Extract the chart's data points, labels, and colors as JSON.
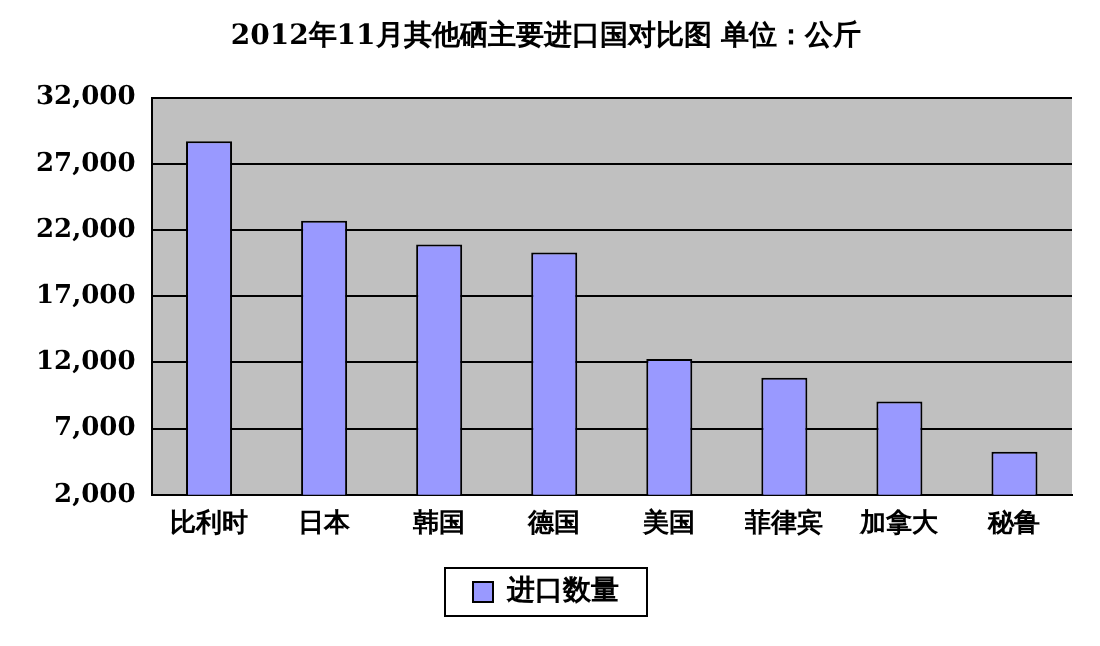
{
  "chart_data": {
    "type": "bar",
    "title": "2012年11月其他硒主要进口国对比图 单位：公斤",
    "categories": [
      "比利时",
      "日本",
      "韩国",
      "德国",
      "美国",
      "菲律宾",
      "加拿大",
      "秘鲁"
    ],
    "series": [
      {
        "name": "进口数量",
        "color": "#9999ff",
        "values": [
          28700,
          22700,
          20900,
          20300,
          12250,
          10850,
          9050,
          5250
        ]
      }
    ],
    "ylim": [
      2000,
      32000
    ],
    "yticks": [
      {
        "value": 2000,
        "label": "2,000"
      },
      {
        "value": 7000,
        "label": "7,000"
      },
      {
        "value": 12000,
        "label": "12,000"
      },
      {
        "value": 17000,
        "label": "17,000"
      },
      {
        "value": 22000,
        "label": "22,000"
      },
      {
        "value": 27000,
        "label": "27,000"
      },
      {
        "value": 32000,
        "label": "32,000"
      }
    ],
    "grid": "y",
    "legend": "bottom"
  }
}
